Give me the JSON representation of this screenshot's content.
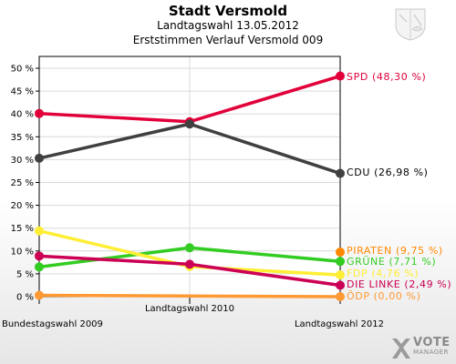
{
  "header": {
    "title": "Stadt Versmold",
    "subtitle": "Landtagswahl 13.05.2012",
    "subtitle2": "Erststimmen Verlauf Versmold 009"
  },
  "logo": {
    "main": "VOTE",
    "sub": "MANAGER"
  },
  "chart_data": {
    "type": "line",
    "title": "Stadt Versmold",
    "x": [
      "Bundestagswahl 2009",
      "Landtagswahl 2010",
      "Landtagswahl 2012"
    ],
    "ylim": [
      0,
      50
    ],
    "yticks": [
      "0 %",
      "5 %",
      "10 %",
      "15 %",
      "20 %",
      "25 %",
      "30 %",
      "35 %",
      "40 %",
      "45 %",
      "50 %"
    ],
    "grid": true,
    "series": [
      {
        "name": "SPD",
        "label": "SPD (48,30 %)",
        "color": "#e2003a",
        "values": [
          40.1,
          38.3,
          48.3
        ]
      },
      {
        "name": "CDU",
        "label": "CDU (26,98 %)",
        "color": "#404040",
        "values": [
          30.3,
          37.8,
          26.98
        ]
      },
      {
        "name": "PIRATEN",
        "label": "PIRATEN (9,75 %)",
        "color": "#ff8800",
        "values": [
          null,
          null,
          9.75
        ]
      },
      {
        "name": "GRÜNE",
        "label": "GRÜNE (7,71 %)",
        "color": "#33cc22",
        "values": [
          6.5,
          10.7,
          7.71
        ]
      },
      {
        "name": "FDP",
        "label": "FDP (4,76 %)",
        "color": "#ffee33",
        "values": [
          14.4,
          6.6,
          4.76
        ]
      },
      {
        "name": "DIE LINKE",
        "label": "DIE LINKE (2,49 %)",
        "color": "#cc0055",
        "values": [
          8.9,
          7.1,
          2.49
        ]
      },
      {
        "name": "ÖDP",
        "label": "ÖDP (0,00 %)",
        "color": "#ff9933",
        "values": [
          0.3,
          null,
          0.0
        ]
      }
    ]
  }
}
